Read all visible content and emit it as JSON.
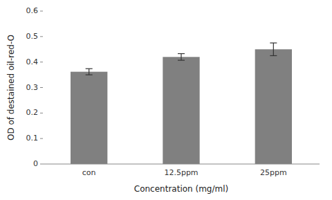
{
  "chart_data": {
    "type": "bar",
    "categories": [
      "con",
      "12.5ppm",
      "25ppm"
    ],
    "values": [
      0.362,
      0.42,
      0.45
    ],
    "errors": [
      0.012,
      0.013,
      0.025
    ],
    "color": "#808080",
    "ylim": [
      0,
      0.6
    ],
    "yticks": [
      0,
      0.1,
      0.2,
      0.3,
      0.4,
      0.5,
      0.6
    ],
    "ylabel": "OD of destained oil-red-O",
    "xlabel": "Concentration (mg/ml)",
    "grid": false
  }
}
